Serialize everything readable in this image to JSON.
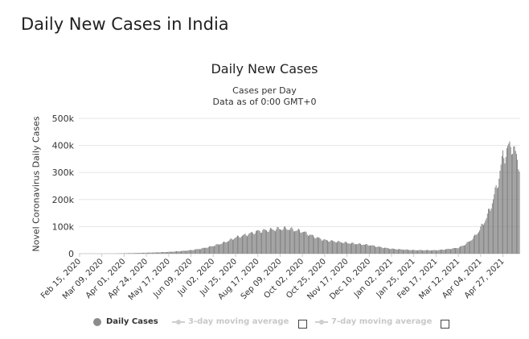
{
  "page": {
    "title": "Daily New Cases in India"
  },
  "legend": {
    "daily": "Daily Cases",
    "ma3": "3-day moving average",
    "ma7": "7-day moving average"
  },
  "colors": {
    "bar": "#7c7c7c",
    "grid": "#e6e6e6",
    "legend_dim": "#c8c8c8"
  },
  "chart_data": {
    "type": "bar",
    "title": "Daily New Cases",
    "subtitle": "Cases per Day",
    "subtitle2": "Data as of 0:00 GMT+0",
    "ylabel": "Novel Coronavirus Daily Cases",
    "xlabel": "",
    "ylim": [
      0,
      500000
    ],
    "yticks": [
      0,
      100000,
      200000,
      300000,
      400000,
      500000
    ],
    "ytick_labels": [
      "0",
      "100k",
      "200k",
      "300k",
      "400k",
      "500k"
    ],
    "grid": true,
    "xticks": [
      "Feb 15, 2020",
      "Mar 09, 2020",
      "Apr 01, 2020",
      "Apr 24, 2020",
      "May 17, 2020",
      "Jun 09, 2020",
      "Jul 02, 2020",
      "Jul 25, 2020",
      "Aug 17, 2020",
      "Sep 09, 2020",
      "Oct 02, 2020",
      "Oct 25, 2020",
      "Nov 17, 2020",
      "Dec 10, 2020",
      "Jan 02, 2021",
      "Jan 25, 2021",
      "Feb 17, 2021",
      "Mar 12, 2021",
      "Apr 04, 2021",
      "Apr 27, 2021"
    ],
    "series": [
      {
        "name": "Daily Cases",
        "weekly_avg_points": [
          [
            "Feb 15, 2020",
            0
          ],
          [
            "Mar 09, 2020",
            30
          ],
          [
            "Apr 01, 2020",
            1500
          ],
          [
            "Apr 24, 2020",
            3500
          ],
          [
            "May 17, 2020",
            6500
          ],
          [
            "Jun 09, 2020",
            13000
          ],
          [
            "Jul 02, 2020",
            29000
          ],
          [
            "Jul 25, 2020",
            60000
          ],
          [
            "Aug 17, 2020",
            83000
          ],
          [
            "Sep 09, 2020",
            92000
          ],
          [
            "Sep 16, 2020",
            93000
          ],
          [
            "Oct 02, 2020",
            82000
          ],
          [
            "Oct 25, 2020",
            50000
          ],
          [
            "Nov 17, 2020",
            40000
          ],
          [
            "Dec 10, 2020",
            32000
          ],
          [
            "Jan 02, 2021",
            18000
          ],
          [
            "Jan 25, 2021",
            13000
          ],
          [
            "Feb 17, 2021",
            12500
          ],
          [
            "Mar 12, 2021",
            22000
          ],
          [
            "Apr 04, 2021",
            95000
          ],
          [
            "Apr 27, 2021",
            360000
          ],
          [
            "May 06, 2021",
            405000
          ],
          [
            "May 14, 2021",
            330000
          ]
        ]
      }
    ]
  }
}
